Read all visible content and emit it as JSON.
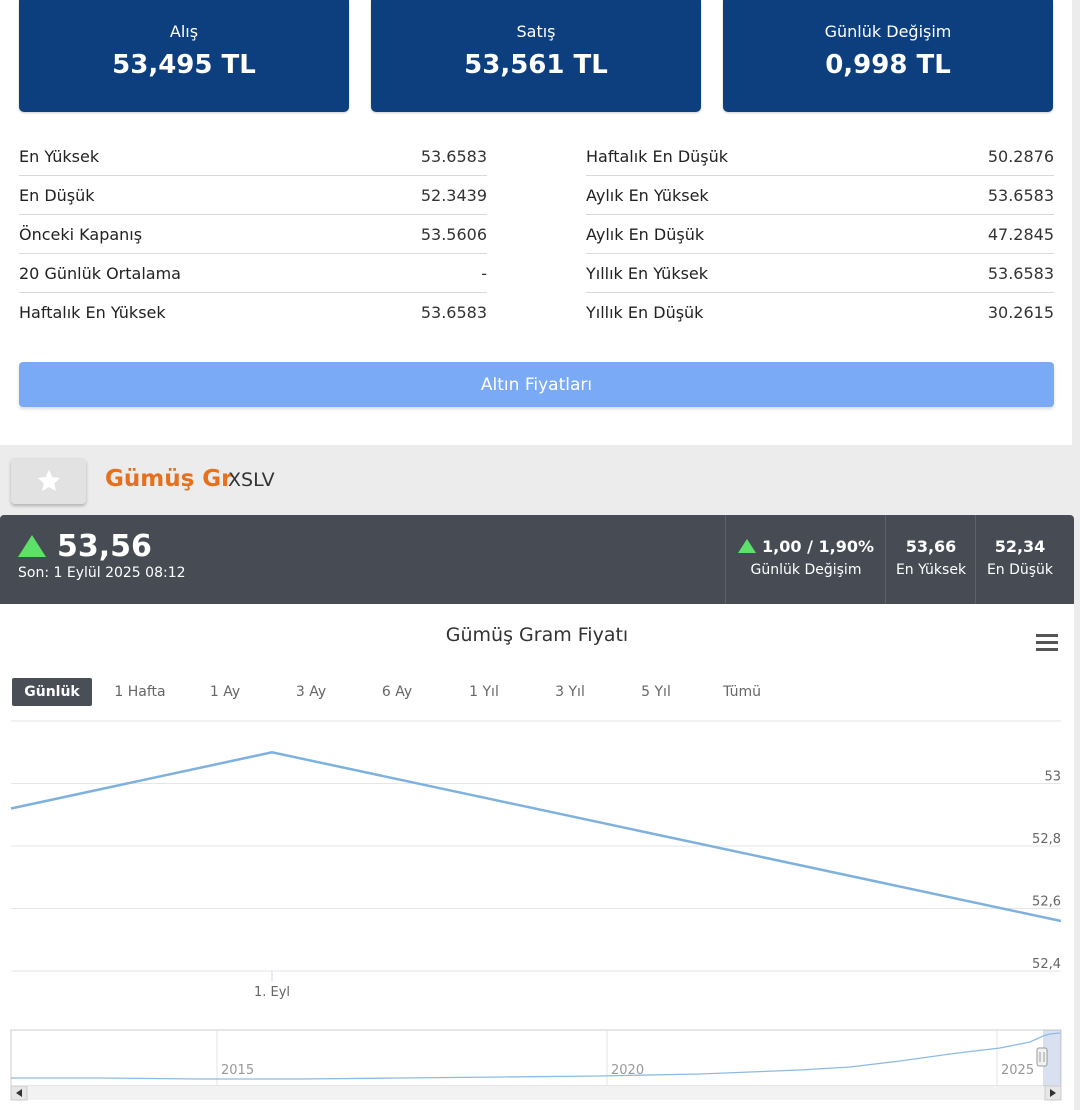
{
  "top_boxes": [
    {
      "label": "Alış",
      "value": "53,495 TL"
    },
    {
      "label": "Satış",
      "value": "53,561 TL"
    },
    {
      "label": "Günlük Değişim",
      "value": "0,998 TL"
    }
  ],
  "stats_left": [
    {
      "label": "En Yüksek",
      "value": "53.6583"
    },
    {
      "label": "En Düşük",
      "value": "52.3439"
    },
    {
      "label": "Önceki Kapanış",
      "value": "53.5606"
    },
    {
      "label": "20 Günlük Ortalama",
      "value": "-"
    },
    {
      "label": "Haftalık En Yüksek",
      "value": "53.6583"
    }
  ],
  "stats_right": [
    {
      "label": "Haftalık En Düşük",
      "value": "50.2876"
    },
    {
      "label": "Aylık En Yüksek",
      "value": "53.6583"
    },
    {
      "label": "Aylık En Düşük",
      "value": "47.2845"
    },
    {
      "label": "Yıllık En Yüksek",
      "value": "53.6583"
    },
    {
      "label": "Yıllık En Düşük",
      "value": "30.2615"
    }
  ],
  "gold_button_label": "Altın Fiyatları",
  "asset": {
    "name": "Gümüş Gr",
    "code": "XSLV"
  },
  "quote": {
    "last": "53,56",
    "time": "Son: 1 Eylül 2025 08:12",
    "change_value": "1,00 / 1,90%",
    "change_label": "Günlük Değişim",
    "high_value": "53,66",
    "high_label": "En Yüksek",
    "low_value": "52,34",
    "low_label": "En Düşük"
  },
  "colors": {
    "up": "#5de16b",
    "line": "#7fb1de",
    "asset": "#e5701d",
    "box": "#0d3f7f"
  },
  "ranges": [
    "Günlük",
    "1 Hafta",
    "1 Ay",
    "3 Ay",
    "6 Ay",
    "1 Yıl",
    "3 Yıl",
    "5 Yıl",
    "Tümü"
  ],
  "active_range": "Günlük",
  "chart_data": {
    "type": "line",
    "title": "Gümüş Gram Fiyatı",
    "y_ticks": [
      "53",
      "52,8",
      "52,6",
      "52,4"
    ],
    "y_tick_values": [
      53,
      52.8,
      52.6,
      52.4
    ],
    "ylim": [
      52.4,
      53.2
    ],
    "x_tick_label": "1. Eyl",
    "series": [
      {
        "values": [
          52.92,
          53.1,
          52.56
        ]
      }
    ],
    "grid": true,
    "navigator": {
      "labels": [
        "2015",
        "2020",
        "2025"
      ]
    }
  }
}
